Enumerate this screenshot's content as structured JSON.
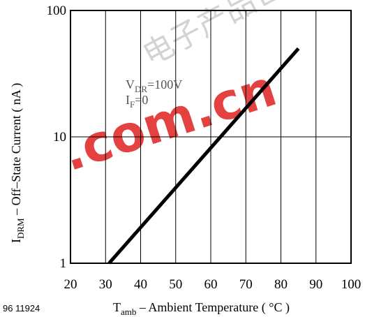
{
  "chart_data": {
    "type": "line",
    "title": "",
    "xlabel": {
      "main": "T",
      "sub": "amb",
      "rest": " – Ambient Temperature ( °C )"
    },
    "ylabel": {
      "main": "I",
      "sub": "DRM",
      "rest": " – Off–State Current ( nA )"
    },
    "xlim": [
      20,
      100
    ],
    "ylim": [
      1,
      100
    ],
    "yscale": "log",
    "xticks": [
      "20",
      "30",
      "40",
      "50",
      "60",
      "70",
      "80",
      "90",
      "100"
    ],
    "yticks": [
      {
        "value": 1,
        "label": "1"
      },
      {
        "value": 10,
        "label": "10"
      },
      {
        "value": 100,
        "label": "100"
      }
    ],
    "grid": true,
    "series": [
      {
        "x": [
          31,
          85
        ],
        "y": [
          1,
          50
        ],
        "color": "#000000"
      }
    ],
    "annotations": [
      {
        "main": "V",
        "sub": "DR",
        "rest": "=100V"
      },
      {
        "main": "I",
        "sub": "F",
        "rest": "=0"
      }
    ]
  },
  "figure_id": "96 11924",
  "watermark": {
    "text": ".com.cn",
    "cjk": "电子产品世界",
    "color": "#e02020"
  }
}
